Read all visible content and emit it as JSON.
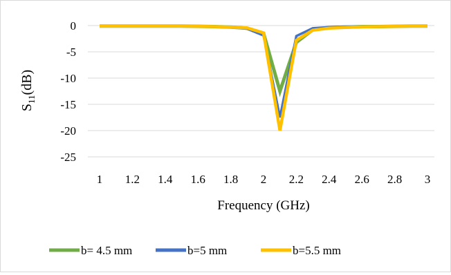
{
  "chart_data": {
    "type": "line",
    "title": "",
    "xlabel": "Frequency (GHz)",
    "ylabel_main": "S",
    "ylabel_sub": "11",
    "ylabel_suffix": "(dB)",
    "xlim": [
      1,
      3
    ],
    "ylim": [
      -25,
      0
    ],
    "grid": "horizontal",
    "legend_position": "bottom",
    "x_ticks": [
      "1",
      "1.2",
      "1.4",
      "1.6",
      "1.8",
      "2",
      "2.2",
      "2.4",
      "2.6",
      "2.8",
      "3"
    ],
    "y_ticks": [
      "0",
      "-5",
      "-10",
      "-15",
      "-20",
      "-25"
    ],
    "x": [
      1.0,
      1.1,
      1.2,
      1.3,
      1.4,
      1.5,
      1.6,
      1.7,
      1.8,
      1.9,
      2.0,
      2.1,
      2.2,
      2.3,
      2.4,
      2.5,
      2.6,
      2.7,
      2.8,
      2.9,
      3.0
    ],
    "series": [
      {
        "name": "b= 4.5 mm",
        "color": "#70AD47",
        "values": [
          -0.1,
          -0.1,
          -0.1,
          -0.1,
          -0.1,
          -0.1,
          -0.15,
          -0.2,
          -0.3,
          -0.5,
          -1.5,
          -12.5,
          -3.2,
          -0.8,
          -0.4,
          -0.3,
          -0.2,
          -0.2,
          -0.15,
          -0.1,
          -0.1
        ]
      },
      {
        "name": "b=5 mm",
        "color": "#4472C4",
        "values": [
          -0.1,
          -0.1,
          -0.1,
          -0.1,
          -0.1,
          -0.1,
          -0.15,
          -0.2,
          -0.3,
          -0.6,
          -1.9,
          -17.5,
          -2.0,
          -0.5,
          -0.3,
          -0.2,
          -0.2,
          -0.15,
          -0.1,
          -0.1,
          -0.1
        ]
      },
      {
        "name": "b=5.5 mm",
        "color": "#FFC000",
        "values": [
          -0.1,
          -0.1,
          -0.1,
          -0.1,
          -0.1,
          -0.1,
          -0.15,
          -0.2,
          -0.3,
          -0.45,
          -1.4,
          -20.0,
          -2.8,
          -0.9,
          -0.5,
          -0.35,
          -0.25,
          -0.2,
          -0.15,
          -0.1,
          -0.1
        ]
      }
    ]
  }
}
